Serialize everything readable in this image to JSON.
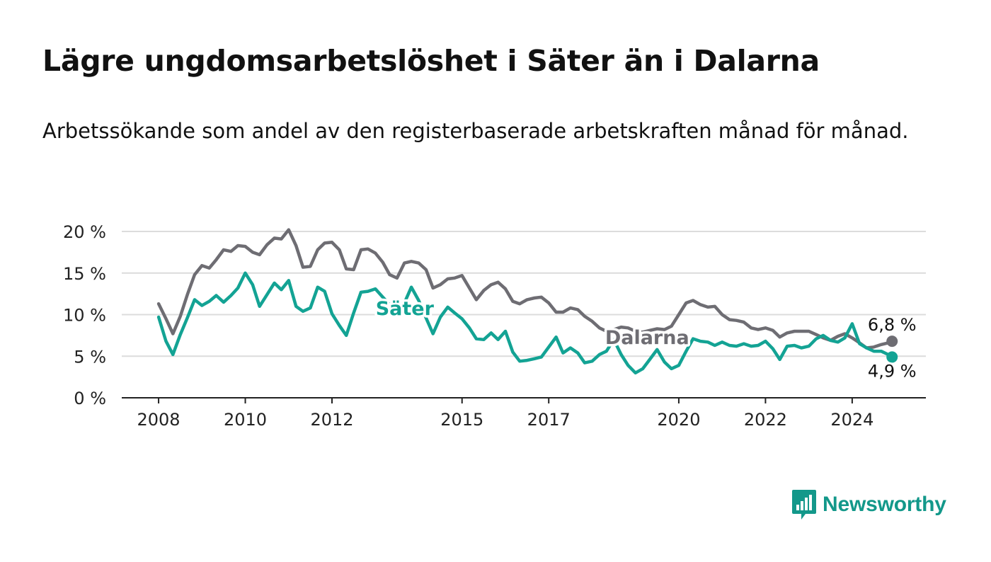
{
  "title": "Lägre ungdomsarbetslöshet i Säter än i Dalarna",
  "subtitle": "Arbetssökande som andel av den registerbaserade arbetskraften månad för månad.",
  "brand": {
    "name": "Newsworthy",
    "icon": "bar-chart-speech-bubble-icon"
  },
  "colors": {
    "dalarna": "#6e6d73",
    "sater": "#13a394",
    "grid": "#dcdcdc",
    "axis": "#222222",
    "brand": "#13988a"
  },
  "chart_data": {
    "type": "line",
    "title": "Lägre ungdomsarbetslöshet i Säter än i Dalarna",
    "ylabel": "",
    "xlabel": "",
    "ylim": [
      0,
      20
    ],
    "yticks": [
      0,
      5,
      10,
      15,
      20
    ],
    "ytick_labels": [
      "0 %",
      "5 %",
      "10 %",
      "15 %",
      "20 %"
    ],
    "xlim": [
      2007.15,
      2025.7
    ],
    "xticks": [
      2008,
      2010,
      2012,
      2015,
      2017,
      2020,
      2022,
      2024
    ],
    "xtick_labels": [
      "2008",
      "2010",
      "2012",
      "2015",
      "2017",
      "2020",
      "2022",
      "2024"
    ],
    "grid": true,
    "legend": "inline labels",
    "series": [
      {
        "name": "Dalarna",
        "color": "#6e6d73",
        "x": [
          2008.0,
          2008.17,
          2008.33,
          2008.5,
          2008.67,
          2008.83,
          2009.0,
          2009.17,
          2009.33,
          2009.5,
          2009.67,
          2009.83,
          2010.0,
          2010.17,
          2010.33,
          2010.5,
          2010.67,
          2010.83,
          2011.0,
          2011.17,
          2011.33,
          2011.5,
          2011.67,
          2011.83,
          2012.0,
          2012.17,
          2012.33,
          2012.5,
          2012.67,
          2012.83,
          2013.0,
          2013.17,
          2013.33,
          2013.5,
          2013.67,
          2013.83,
          2014.0,
          2014.17,
          2014.33,
          2014.5,
          2014.67,
          2014.83,
          2015.0,
          2015.17,
          2015.33,
          2015.5,
          2015.67,
          2015.83,
          2016.0,
          2016.17,
          2016.33,
          2016.5,
          2016.67,
          2016.83,
          2017.0,
          2017.17,
          2017.33,
          2017.5,
          2017.67,
          2017.83,
          2018.0,
          2018.17,
          2018.33,
          2018.5,
          2018.67,
          2018.83,
          2019.0,
          2019.17,
          2019.33,
          2019.5,
          2019.67,
          2019.83,
          2020.0,
          2020.17,
          2020.33,
          2020.5,
          2020.67,
          2020.83,
          2021.0,
          2021.17,
          2021.33,
          2021.5,
          2021.67,
          2021.83,
          2022.0,
          2022.17,
          2022.33,
          2022.5,
          2022.67,
          2022.83,
          2023.0,
          2023.17,
          2023.33,
          2023.5,
          2023.67,
          2023.83,
          2024.0,
          2024.17,
          2024.33,
          2024.5,
          2024.67,
          2024.83,
          2024.92
        ],
        "values": [
          11.3,
          9.5,
          7.7,
          9.8,
          12.5,
          14.8,
          15.9,
          15.6,
          16.6,
          17.8,
          17.6,
          18.3,
          18.2,
          17.5,
          17.2,
          18.4,
          19.2,
          19.1,
          20.2,
          18.3,
          15.7,
          15.8,
          17.8,
          18.6,
          18.7,
          17.8,
          15.5,
          15.4,
          17.8,
          17.9,
          17.4,
          16.3,
          14.8,
          14.4,
          16.2,
          16.4,
          16.2,
          15.4,
          13.2,
          13.6,
          14.3,
          14.4,
          14.7,
          13.2,
          11.8,
          12.9,
          13.6,
          13.9,
          13.1,
          11.6,
          11.3,
          11.8,
          12.0,
          12.1,
          11.4,
          10.3,
          10.3,
          10.8,
          10.6,
          9.8,
          9.2,
          8.4,
          8.0,
          8.2,
          8.5,
          8.4,
          8.0,
          7.9,
          8.1,
          8.3,
          8.2,
          8.6,
          10.0,
          11.4,
          11.7,
          11.2,
          10.9,
          11.0,
          10.0,
          9.4,
          9.3,
          9.1,
          8.4,
          8.2,
          8.4,
          8.1,
          7.3,
          7.8,
          8.0,
          8.0,
          8.0,
          7.6,
          7.2,
          6.9,
          7.4,
          7.7,
          7.2,
          6.6,
          6.0,
          6.1,
          6.4,
          6.6,
          6.8
        ]
      },
      {
        "name": "Säter",
        "color": "#13a394",
        "x": [
          2008.0,
          2008.17,
          2008.33,
          2008.5,
          2008.67,
          2008.83,
          2009.0,
          2009.17,
          2009.33,
          2009.5,
          2009.67,
          2009.83,
          2010.0,
          2010.17,
          2010.33,
          2010.5,
          2010.67,
          2010.83,
          2011.0,
          2011.17,
          2011.33,
          2011.5,
          2011.67,
          2011.83,
          2012.0,
          2012.17,
          2012.33,
          2012.5,
          2012.67,
          2012.83,
          2013.0,
          2013.17,
          2013.33,
          2013.5,
          2013.67,
          2013.83,
          2014.0,
          2014.17,
          2014.33,
          2014.5,
          2014.67,
          2014.83,
          2015.0,
          2015.17,
          2015.33,
          2015.5,
          2015.67,
          2015.83,
          2016.0,
          2016.17,
          2016.33,
          2016.5,
          2016.67,
          2016.83,
          2017.0,
          2017.17,
          2017.33,
          2017.5,
          2017.67,
          2017.83,
          2018.0,
          2018.17,
          2018.33,
          2018.5,
          2018.67,
          2018.83,
          2019.0,
          2019.17,
          2019.33,
          2019.5,
          2019.67,
          2019.83,
          2020.0,
          2020.17,
          2020.33,
          2020.5,
          2020.67,
          2020.83,
          2021.0,
          2021.17,
          2021.33,
          2021.5,
          2021.67,
          2021.83,
          2022.0,
          2022.17,
          2022.33,
          2022.5,
          2022.67,
          2022.83,
          2023.0,
          2023.17,
          2023.33,
          2023.5,
          2023.67,
          2023.83,
          2024.0,
          2024.17,
          2024.33,
          2024.5,
          2024.67,
          2024.83,
          2024.92
        ],
        "values": [
          9.7,
          6.8,
          5.2,
          7.6,
          9.7,
          11.8,
          11.1,
          11.6,
          12.3,
          11.5,
          12.3,
          13.2,
          15.0,
          13.6,
          11.0,
          12.4,
          13.8,
          13.0,
          14.1,
          11.0,
          10.4,
          10.8,
          13.3,
          12.8,
          10.1,
          8.7,
          7.5,
          10.2,
          12.7,
          12.8,
          13.1,
          12.1,
          11.2,
          11.0,
          11.4,
          13.3,
          11.7,
          9.6,
          7.7,
          9.7,
          10.9,
          10.2,
          9.5,
          8.4,
          7.1,
          7.0,
          7.8,
          7.0,
          8.0,
          5.5,
          4.4,
          4.5,
          4.7,
          4.9,
          6.1,
          7.3,
          5.4,
          6.0,
          5.4,
          4.2,
          4.4,
          5.2,
          5.6,
          7.0,
          5.2,
          3.9,
          3.0,
          3.5,
          4.6,
          5.8,
          4.3,
          3.5,
          3.9,
          5.6,
          7.1,
          6.8,
          6.7,
          6.3,
          6.7,
          6.3,
          6.2,
          6.5,
          6.2,
          6.3,
          6.8,
          5.9,
          4.6,
          6.2,
          6.3,
          6.0,
          6.2,
          7.1,
          7.5,
          6.9,
          6.7,
          7.2,
          8.9,
          6.5,
          6.0,
          5.6,
          5.6,
          5.2,
          4.9
        ]
      }
    ],
    "annotations": [
      {
        "series": "Dalarna",
        "label": "6,8 %",
        "value": 6.8
      },
      {
        "series": "Säter",
        "label": "4,9 %",
        "value": 4.9
      }
    ]
  }
}
